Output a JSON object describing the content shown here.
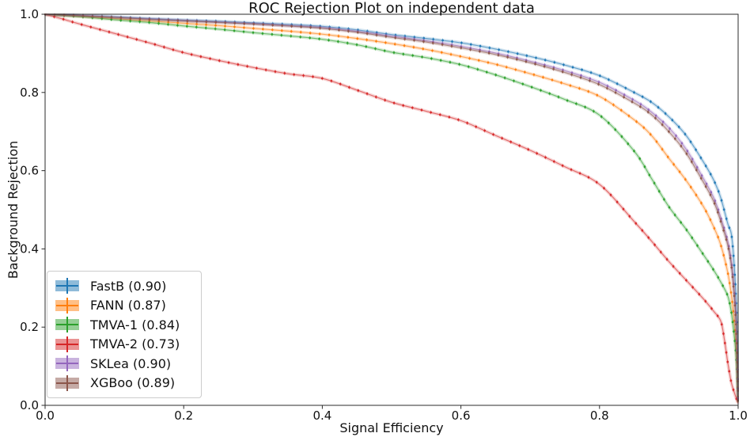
{
  "chart_data": {
    "type": "line",
    "title": "ROC Rejection Plot on independent data",
    "xlabel": "Signal Efficiency",
    "ylabel": "Background Rejection",
    "xlim": [
      0.0,
      1.0
    ],
    "ylim": [
      0.0,
      1.0
    ],
    "x_ticks": [
      "0.0",
      "0.2",
      "0.4",
      "0.6",
      "0.8",
      "1.0"
    ],
    "y_ticks": [
      "0.0",
      "0.2",
      "0.4",
      "0.6",
      "0.8",
      "1.0"
    ],
    "grid": false,
    "legend_position": "lower left",
    "marker_style": "dots-with-error-bars",
    "series": [
      {
        "name": "FastB",
        "auc": "0.90",
        "label": "FastB (0.90)",
        "color": "#1f77b4",
        "points": [
          [
            0,
            1.0
          ],
          [
            0.05,
            0.997
          ],
          [
            0.1,
            0.993
          ],
          [
            0.15,
            0.989
          ],
          [
            0.2,
            0.985
          ],
          [
            0.25,
            0.982
          ],
          [
            0.3,
            0.978
          ],
          [
            0.35,
            0.974
          ],
          [
            0.4,
            0.969
          ],
          [
            0.45,
            0.96
          ],
          [
            0.5,
            0.948
          ],
          [
            0.55,
            0.938
          ],
          [
            0.6,
            0.927
          ],
          [
            0.65,
            0.911
          ],
          [
            0.7,
            0.892
          ],
          [
            0.75,
            0.87
          ],
          [
            0.8,
            0.843
          ],
          [
            0.85,
            0.8
          ],
          [
            0.875,
            0.775
          ],
          [
            0.9,
            0.738
          ],
          [
            0.925,
            0.69
          ],
          [
            0.95,
            0.622
          ],
          [
            0.965,
            0.575
          ],
          [
            0.975,
            0.53
          ],
          [
            0.985,
            0.465
          ],
          [
            0.99,
            0.44
          ],
          [
            0.993,
            0.39
          ],
          [
            0.996,
            0.31
          ],
          [
            0.998,
            0.22
          ],
          [
            0.999,
            0.12
          ],
          [
            1.0,
            0.015
          ]
        ]
      },
      {
        "name": "FANN",
        "auc": "0.87",
        "label": "FANN (0.87)",
        "color": "#ff7f0e",
        "points": [
          [
            0,
            1.0
          ],
          [
            0.05,
            0.995
          ],
          [
            0.1,
            0.989
          ],
          [
            0.15,
            0.983
          ],
          [
            0.2,
            0.977
          ],
          [
            0.25,
            0.971
          ],
          [
            0.3,
            0.964
          ],
          [
            0.35,
            0.957
          ],
          [
            0.4,
            0.949
          ],
          [
            0.45,
            0.938
          ],
          [
            0.5,
            0.925
          ],
          [
            0.55,
            0.91
          ],
          [
            0.6,
            0.892
          ],
          [
            0.65,
            0.872
          ],
          [
            0.7,
            0.848
          ],
          [
            0.75,
            0.822
          ],
          [
            0.8,
            0.79
          ],
          [
            0.85,
            0.73
          ],
          [
            0.875,
            0.69
          ],
          [
            0.9,
            0.632
          ],
          [
            0.925,
            0.575
          ],
          [
            0.95,
            0.508
          ],
          [
            0.965,
            0.455
          ],
          [
            0.975,
            0.41
          ],
          [
            0.985,
            0.34
          ],
          [
            0.99,
            0.285
          ],
          [
            0.993,
            0.24
          ],
          [
            0.996,
            0.18
          ],
          [
            0.998,
            0.12
          ],
          [
            0.999,
            0.065
          ],
          [
            1.0,
            0.008
          ]
        ]
      },
      {
        "name": "TMVA-1",
        "auc": "0.84",
        "label": "TMVA-1 (0.84)",
        "color": "#2ca02c",
        "points": [
          [
            0,
            1.0
          ],
          [
            0.05,
            0.994
          ],
          [
            0.1,
            0.986
          ],
          [
            0.15,
            0.979
          ],
          [
            0.2,
            0.97
          ],
          [
            0.25,
            0.962
          ],
          [
            0.3,
            0.953
          ],
          [
            0.35,
            0.945
          ],
          [
            0.4,
            0.936
          ],
          [
            0.45,
            0.922
          ],
          [
            0.5,
            0.903
          ],
          [
            0.55,
            0.889
          ],
          [
            0.6,
            0.871
          ],
          [
            0.65,
            0.845
          ],
          [
            0.7,
            0.815
          ],
          [
            0.75,
            0.782
          ],
          [
            0.8,
            0.742
          ],
          [
            0.85,
            0.65
          ],
          [
            0.875,
            0.58
          ],
          [
            0.9,
            0.508
          ],
          [
            0.925,
            0.45
          ],
          [
            0.95,
            0.385
          ],
          [
            0.965,
            0.345
          ],
          [
            0.975,
            0.315
          ],
          [
            0.985,
            0.28
          ],
          [
            0.99,
            0.24
          ],
          [
            0.993,
            0.2
          ],
          [
            0.996,
            0.15
          ],
          [
            0.998,
            0.1
          ],
          [
            0.999,
            0.055
          ],
          [
            1.0,
            0.008
          ]
        ]
      },
      {
        "name": "TMVA-2",
        "auc": "0.73",
        "label": "TMVA-2 (0.73)",
        "color": "#d62728",
        "points": [
          [
            0,
            1.0
          ],
          [
            0.025,
            0.988
          ],
          [
            0.05,
            0.975
          ],
          [
            0.1,
            0.951
          ],
          [
            0.15,
            0.927
          ],
          [
            0.2,
            0.902
          ],
          [
            0.25,
            0.882
          ],
          [
            0.3,
            0.864
          ],
          [
            0.35,
            0.848
          ],
          [
            0.4,
            0.836
          ],
          [
            0.45,
            0.806
          ],
          [
            0.5,
            0.775
          ],
          [
            0.55,
            0.752
          ],
          [
            0.6,
            0.728
          ],
          [
            0.65,
            0.69
          ],
          [
            0.7,
            0.652
          ],
          [
            0.75,
            0.61
          ],
          [
            0.8,
            0.565
          ],
          [
            0.85,
            0.47
          ],
          [
            0.875,
            0.42
          ],
          [
            0.9,
            0.368
          ],
          [
            0.925,
            0.32
          ],
          [
            0.95,
            0.272
          ],
          [
            0.965,
            0.24
          ],
          [
            0.975,
            0.215
          ],
          [
            0.98,
            0.17
          ],
          [
            0.985,
            0.11
          ],
          [
            0.99,
            0.06
          ],
          [
            0.995,
            0.03
          ],
          [
            1.0,
            0.005
          ]
        ]
      },
      {
        "name": "SKLea",
        "auc": "0.90",
        "label": "SKLea (0.90)",
        "color": "#9467bd",
        "points": [
          [
            0,
            1.0
          ],
          [
            0.05,
            0.997
          ],
          [
            0.1,
            0.992
          ],
          [
            0.15,
            0.988
          ],
          [
            0.2,
            0.984
          ],
          [
            0.25,
            0.98
          ],
          [
            0.3,
            0.976
          ],
          [
            0.35,
            0.971
          ],
          [
            0.4,
            0.966
          ],
          [
            0.45,
            0.956
          ],
          [
            0.5,
            0.944
          ],
          [
            0.55,
            0.932
          ],
          [
            0.6,
            0.918
          ],
          [
            0.65,
            0.901
          ],
          [
            0.7,
            0.88
          ],
          [
            0.75,
            0.856
          ],
          [
            0.8,
            0.826
          ],
          [
            0.85,
            0.78
          ],
          [
            0.875,
            0.75
          ],
          [
            0.9,
            0.71
          ],
          [
            0.925,
            0.655
          ],
          [
            0.95,
            0.58
          ],
          [
            0.965,
            0.53
          ],
          [
            0.975,
            0.48
          ],
          [
            0.985,
            0.42
          ],
          [
            0.99,
            0.37
          ],
          [
            0.993,
            0.32
          ],
          [
            0.996,
            0.25
          ],
          [
            0.998,
            0.17
          ],
          [
            0.999,
            0.1
          ],
          [
            1.0,
            0.012
          ]
        ]
      },
      {
        "name": "XGBoo",
        "auc": "0.89",
        "label": "XGBoo (0.89)",
        "color": "#8c564b",
        "points": [
          [
            0,
            1.0
          ],
          [
            0.05,
            0.996
          ],
          [
            0.1,
            0.992
          ],
          [
            0.15,
            0.987
          ],
          [
            0.2,
            0.983
          ],
          [
            0.25,
            0.979
          ],
          [
            0.3,
            0.975
          ],
          [
            0.35,
            0.97
          ],
          [
            0.4,
            0.964
          ],
          [
            0.45,
            0.954
          ],
          [
            0.5,
            0.941
          ],
          [
            0.55,
            0.929
          ],
          [
            0.6,
            0.914
          ],
          [
            0.65,
            0.897
          ],
          [
            0.7,
            0.876
          ],
          [
            0.75,
            0.851
          ],
          [
            0.8,
            0.82
          ],
          [
            0.85,
            0.773
          ],
          [
            0.875,
            0.743
          ],
          [
            0.9,
            0.7
          ],
          [
            0.925,
            0.645
          ],
          [
            0.95,
            0.57
          ],
          [
            0.965,
            0.52
          ],
          [
            0.975,
            0.47
          ],
          [
            0.985,
            0.41
          ],
          [
            0.99,
            0.36
          ],
          [
            0.993,
            0.31
          ],
          [
            0.996,
            0.24
          ],
          [
            0.998,
            0.165
          ],
          [
            0.999,
            0.095
          ],
          [
            1.0,
            0.01
          ]
        ]
      }
    ]
  }
}
